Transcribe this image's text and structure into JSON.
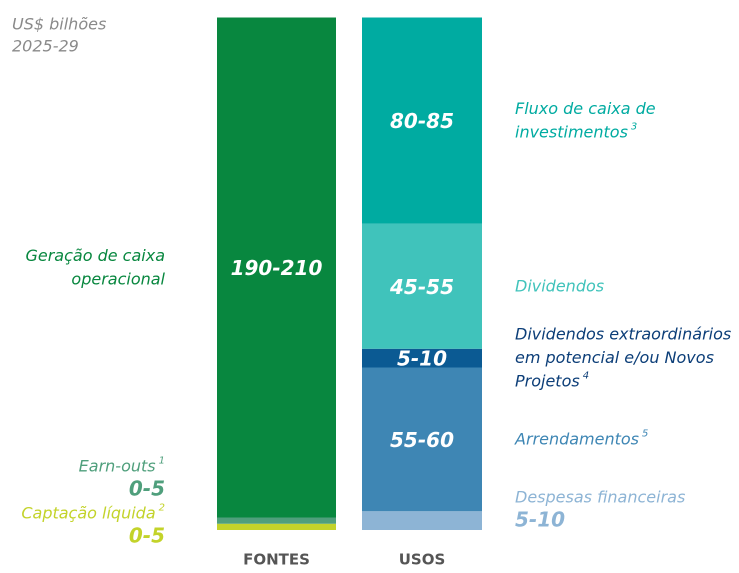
{
  "chart_data": {
    "type": "stacked-range-bar",
    "unit_lines": [
      "US$ bilhões",
      "2025-29"
    ],
    "bars": [
      {
        "category": "FONTES",
        "segments": [
          {
            "name_lines": [
              "Captação líquida"
            ],
            "note": "2",
            "values": [
              0,
              5
            ],
            "value_label": "0-5",
            "color": "#c3d32a"
          },
          {
            "name_lines": [
              "Earn-outs"
            ],
            "note": "1",
            "values": [
              0,
              5
            ],
            "value_label": "0-5",
            "color": "#4f9f7c"
          },
          {
            "name_lines": [
              "Geração de caixa",
              "operacional"
            ],
            "values": [
              190,
              210
            ],
            "value_label": "190-210",
            "color": "#08873f"
          }
        ]
      },
      {
        "category": "USOS",
        "segments": [
          {
            "name_lines": [
              "Despesas financeiras"
            ],
            "values": [
              5,
              10
            ],
            "value_label": "5-10",
            "color": "#8db4d5"
          },
          {
            "name_lines": [
              "Arrendamentos"
            ],
            "note": "5",
            "values": [
              55,
              60
            ],
            "value_label": "55-60",
            "color": "#3e86b4"
          },
          {
            "name_lines": [
              "Dividendos extraordinários",
              "em potencial e/ou Novos",
              "Projetos"
            ],
            "note": "4",
            "values": [
              5,
              10
            ],
            "value_label": "5-10",
            "color": "#0b5a93"
          },
          {
            "name_lines": [
              "Dividendos"
            ],
            "values": [
              45,
              55
            ],
            "value_label": "45-55",
            "color": "#40c3bb"
          },
          {
            "name_lines": [
              "Fluxo de caixa de",
              "investimentos"
            ],
            "note": "3",
            "values": [
              80,
              85
            ],
            "value_label": "80-85",
            "color": "#00aba1"
          }
        ]
      }
    ]
  }
}
